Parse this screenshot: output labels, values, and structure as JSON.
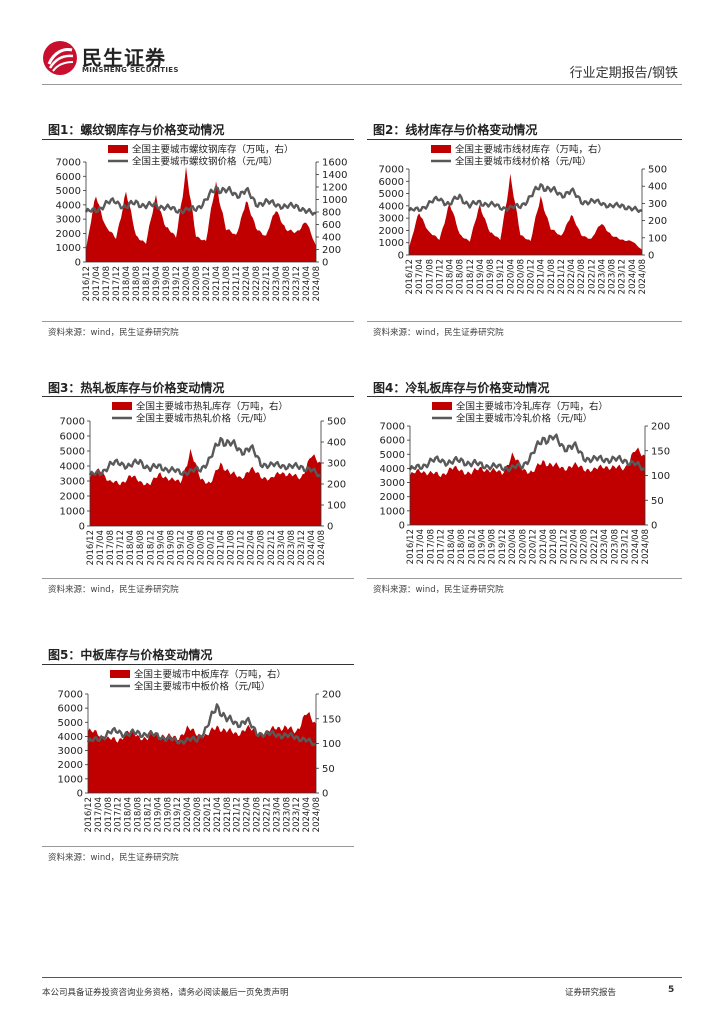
{
  "header": {
    "logo_cn": "民生证券",
    "logo_en": "MINSHENG SECURITIES",
    "report_type": "行业定期报告/钢铁"
  },
  "colors": {
    "bar": "#c00000",
    "line": "#595959",
    "axis": "#333333"
  },
  "figures": [
    {
      "title": "图1：螺纹钢库存与价格变动情况",
      "source": "资料来源：wind，民生证券研究院"
    },
    {
      "title": "图2：线材库存与价格变动情况",
      "source": "资料来源：wind，民生证券研究院"
    },
    {
      "title": "图3：热轧板库存与价格变动情况",
      "source": "资料来源：wind，民生证券研究院"
    },
    {
      "title": "图4：冷轧板库存与价格变动情况",
      "source": "资料来源：wind，民生证券研究院"
    },
    {
      "title": "图5：中板库存与价格变动情况",
      "source": "资料来源：wind，民生证券研究院"
    }
  ],
  "chart_data": [
    {
      "type": "bar",
      "x": [
        "2016/12",
        "2017/04",
        "2017/08",
        "2017/12",
        "2018/04",
        "2018/08",
        "2018/12",
        "2019/04",
        "2019/08",
        "2019/12",
        "2020/04",
        "2020/08",
        "2020/12",
        "2021/04",
        "2021/08",
        "2021/12",
        "2022/04",
        "2022/08",
        "2022/12",
        "2023/04",
        "2023/08",
        "2023/12",
        "2024/04",
        "2024/08"
      ],
      "series": [
        {
          "name": "全国主要城市螺纹钢库存（万吨，右）",
          "type": "area",
          "axis": "right",
          "values": [
            200,
            1080,
            550,
            380,
            1120,
            420,
            300,
            1050,
            550,
            400,
            1450,
            420,
            330,
            1280,
            520,
            430,
            960,
            560,
            400,
            860,
            500,
            480,
            640,
            260
          ]
        },
        {
          "name": "全国主要城市螺纹钢价格（元/吨）",
          "type": "line",
          "axis": "left",
          "values": [
            3500,
            3600,
            4100,
            4250,
            3800,
            4200,
            3900,
            4000,
            3800,
            3650,
            3600,
            3750,
            4300,
            5200,
            5000,
            4700,
            5000,
            4100,
            4150,
            4100,
            3800,
            4000,
            3500,
            3400
          ]
        }
      ],
      "left_axis": {
        "min": 0,
        "max": 7000,
        "ticks": [
          0,
          1000,
          2000,
          3000,
          4000,
          5000,
          6000,
          7000
        ]
      },
      "right_axis": {
        "min": 0,
        "max": 1600,
        "ticks": [
          0,
          200,
          400,
          600,
          800,
          1000,
          1200,
          1400,
          1600
        ]
      },
      "legend": "top-center"
    },
    {
      "type": "bar",
      "x": [
        "2016/12",
        "2017/04",
        "2017/08",
        "2017/12",
        "2018/04",
        "2018/08",
        "2018/12",
        "2019/04",
        "2019/08",
        "2019/12",
        "2020/04",
        "2020/08",
        "2020/12",
        "2021/04",
        "2021/08",
        "2021/12",
        "2022/04",
        "2022/08",
        "2022/12",
        "2023/04",
        "2023/08",
        "2023/12",
        "2024/04",
        "2024/08"
      ],
      "series": [
        {
          "name": "全国主要城市线材库存（万吨，右）",
          "type": "area",
          "axis": "right",
          "values": [
            40,
            250,
            130,
            90,
            300,
            120,
            80,
            290,
            130,
            90,
            450,
            120,
            80,
            340,
            150,
            110,
            230,
            120,
            90,
            190,
            110,
            90,
            80,
            30
          ]
        },
        {
          "name": "全国主要城市线材价格（元/吨）",
          "type": "line",
          "axis": "left",
          "values": [
            3600,
            3700,
            4200,
            4600,
            4100,
            4800,
            4000,
            4300,
            4100,
            3900,
            3800,
            4000,
            4700,
            5700,
            5300,
            4900,
            5200,
            4400,
            4300,
            4300,
            3900,
            4100,
            3700,
            3600
          ]
        }
      ],
      "left_axis": {
        "min": 0,
        "max": 7000,
        "ticks": [
          0,
          1000,
          2000,
          3000,
          4000,
          5000,
          6000,
          7000
        ]
      },
      "right_axis": {
        "min": 0,
        "max": 500,
        "ticks": [
          0,
          100,
          200,
          300,
          400,
          500
        ]
      },
      "legend": "top-center"
    },
    {
      "type": "bar",
      "x": [
        "2016/12",
        "2017/04",
        "2017/08",
        "2017/12",
        "2018/04",
        "2018/08",
        "2018/12",
        "2019/04",
        "2019/08",
        "2019/12",
        "2020/04",
        "2020/08",
        "2020/12",
        "2021/04",
        "2021/08",
        "2021/12",
        "2022/04",
        "2022/08",
        "2022/12",
        "2023/04",
        "2023/08",
        "2023/12",
        "2024/04",
        "2024/08"
      ],
      "series": [
        {
          "name": "全国主要城市热轧库存（万吨，右）",
          "type": "area",
          "axis": "right",
          "values": [
            230,
            270,
            210,
            200,
            240,
            210,
            200,
            250,
            220,
            210,
            350,
            230,
            200,
            300,
            250,
            230,
            270,
            240,
            220,
            260,
            240,
            230,
            330,
            300
          ]
        },
        {
          "name": "全国主要城市热轧价格（元/吨）",
          "type": "line",
          "axis": "left",
          "values": [
            3400,
            3500,
            4100,
            4200,
            4000,
            4300,
            3800,
            4000,
            3700,
            3600,
            3600,
            3800,
            4500,
            5800,
            5500,
            5000,
            5200,
            4200,
            4000,
            4100,
            3900,
            4000,
            3700,
            3300
          ]
        }
      ],
      "left_axis": {
        "min": 0,
        "max": 7000,
        "ticks": [
          0,
          1000,
          2000,
          3000,
          4000,
          5000,
          6000,
          7000
        ]
      },
      "right_axis": {
        "min": 0,
        "max": 500,
        "ticks": [
          0,
          100,
          200,
          300,
          400,
          500
        ]
      },
      "legend": "top-center"
    },
    {
      "type": "bar",
      "x": [
        "2016/12",
        "2017/04",
        "2017/08",
        "2017/12",
        "2018/04",
        "2018/08",
        "2018/12",
        "2019/04",
        "2019/08",
        "2019/12",
        "2020/04",
        "2020/08",
        "2020/12",
        "2021/04",
        "2021/08",
        "2021/12",
        "2022/04",
        "2022/08",
        "2022/12",
        "2023/04",
        "2023/08",
        "2023/12",
        "2024/04",
        "2024/08"
      ],
      "series": [
        {
          "name": "全国主要城市冷轧库存（万吨，右）",
          "type": "area",
          "axis": "right",
          "values": [
            100,
            110,
            105,
            100,
            115,
            110,
            105,
            115,
            110,
            105,
            140,
            115,
            105,
            130,
            120,
            115,
            120,
            115,
            110,
            120,
            115,
            115,
            150,
            140
          ]
        },
        {
          "name": "全国主要城市冷轧价格（元/吨）",
          "type": "line",
          "axis": "left",
          "values": [
            3900,
            4100,
            4500,
            4600,
            4400,
            4600,
            4300,
            4300,
            4100,
            4100,
            4000,
            4200,
            5000,
            6100,
            6200,
            5500,
            5600,
            4800,
            4600,
            4700,
            4600,
            4600,
            4300,
            3900
          ]
        }
      ],
      "left_axis": {
        "min": 0,
        "max": 7000,
        "ticks": [
          0,
          1000,
          2000,
          3000,
          4000,
          5000,
          6000,
          7000
        ]
      },
      "right_axis": {
        "min": 0,
        "max": 200,
        "ticks": [
          0,
          50,
          100,
          150,
          200
        ]
      },
      "legend": "top-center"
    },
    {
      "type": "bar",
      "x": [
        "2016/12",
        "2017/04",
        "2017/08",
        "2017/12",
        "2018/04",
        "2018/08",
        "2018/12",
        "2019/04",
        "2019/08",
        "2019/12",
        "2020/04",
        "2020/08",
        "2020/12",
        "2021/04",
        "2021/08",
        "2021/12",
        "2022/04",
        "2022/08",
        "2022/12",
        "2023/04",
        "2023/08",
        "2023/12",
        "2024/04",
        "2024/08"
      ],
      "series": [
        {
          "name": "全国主要城市中板库存（万吨，右）",
          "type": "area",
          "axis": "right",
          "values": [
            125,
            120,
            110,
            105,
            125,
            115,
            110,
            120,
            115,
            110,
            130,
            120,
            115,
            135,
            125,
            120,
            130,
            125,
            120,
            135,
            130,
            125,
            160,
            140
          ]
        },
        {
          "name": "全国主要城市中板价格（元/吨）",
          "type": "line",
          "axis": "left",
          "values": [
            3600,
            3800,
            4200,
            4400,
            4100,
            4300,
            4100,
            4100,
            3800,
            3700,
            3700,
            3800,
            4600,
            6200,
            5200,
            4900,
            5100,
            4300,
            4100,
            4200,
            4000,
            4000,
            3700,
            3400
          ]
        }
      ],
      "left_axis": {
        "min": 0,
        "max": 7000,
        "ticks": [
          0,
          1000,
          2000,
          3000,
          4000,
          5000,
          6000,
          7000
        ]
      },
      "right_axis": {
        "min": 0,
        "max": 200,
        "ticks": [
          0,
          50,
          100,
          150,
          200
        ]
      },
      "legend": "top-center"
    }
  ],
  "footer": {
    "disclaimer": "本公司具备证券投资咨询业务资格，请务必阅读最后一页免责声明",
    "report_label": "证券研究报告",
    "page": "5"
  }
}
